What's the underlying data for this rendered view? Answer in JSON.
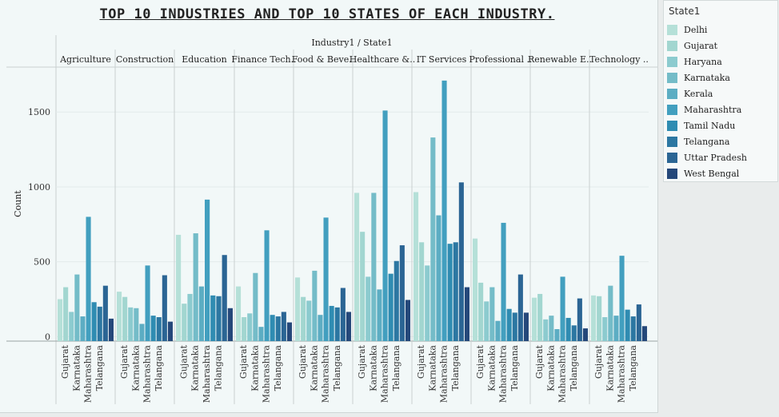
{
  "chart_data": {
    "type": "bar",
    "title": "TOP 10 INDUSTRIES AND TOP 10 STATES OF EACH INDUSTRY.",
    "header_label": "Industry1  /  State1",
    "ylabel": "Count",
    "ylim": [
      -30,
      1800
    ],
    "yticks": [
      0,
      500,
      1000,
      1500
    ],
    "grid": true,
    "legend_position": "right",
    "legend_title": "State1",
    "states": [
      "Delhi",
      "Gujarat",
      "Haryana",
      "Karnataka",
      "Kerala",
      "Maharashtra",
      "Tamil Nadu",
      "Telangana",
      "Uttar Pradesh",
      "West Bengal"
    ],
    "colors": [
      "#b5e0d8",
      "#a2d6d0",
      "#8ccbcf",
      "#74bcc8",
      "#5cadc3",
      "#429fbf",
      "#2f8cb2",
      "#2c77a2",
      "#2b6594",
      "#25487a"
    ],
    "tick_labels": [
      "Gujarat",
      "Karnataka",
      "Maharashtra",
      "Telangana"
    ],
    "tick_state_index": [
      1,
      3,
      5,
      7
    ],
    "industries": [
      {
        "label": "Agriculture",
        "values": [
          250,
          330,
          165,
          415,
          135,
          800,
          230,
          200,
          340,
          120
        ]
      },
      {
        "label": "Construction",
        "values": [
          300,
          265,
          195,
          190,
          85,
          475,
          140,
          130,
          410,
          100
        ]
      },
      {
        "label": "Education",
        "values": [
          680,
          220,
          285,
          690,
          335,
          915,
          275,
          270,
          545,
          190
        ]
      },
      {
        "label": "Finance Tech..",
        "values": [
          335,
          130,
          155,
          425,
          65,
          710,
          145,
          135,
          165,
          95
        ]
      },
      {
        "label": "Food & Beve..",
        "values": [
          395,
          265,
          240,
          440,
          145,
          795,
          205,
          195,
          325,
          165
        ]
      },
      {
        "label": "Healthcare &..",
        "values": [
          960,
          700,
          400,
          960,
          315,
          1510,
          420,
          505,
          610,
          245
        ]
      },
      {
        "label": "IT Services",
        "values": [
          965,
          630,
          475,
          1330,
          810,
          1710,
          620,
          630,
          1030,
          330
        ]
      },
      {
        "label": "Professional ..",
        "values": [
          655,
          360,
          235,
          330,
          105,
          760,
          185,
          160,
          415,
          160
        ]
      },
      {
        "label": "Renewable E..",
        "values": [
          260,
          285,
          115,
          140,
          50,
          400,
          125,
          75,
          255,
          55
        ]
      },
      {
        "label": "Technology ..",
        "values": [
          275,
          270,
          130,
          340,
          140,
          540,
          180,
          135,
          215,
          70
        ]
      }
    ]
  }
}
